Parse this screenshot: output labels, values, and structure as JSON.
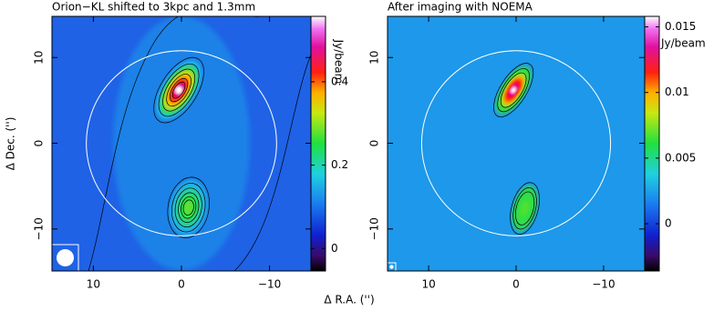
{
  "chart_data": [
    {
      "type": "map",
      "title": "Orion−KL shifted to 3kpc and 1.3mm",
      "x_label": "Δ R.A. ('')",
      "y_label": "Δ Dec. ('')",
      "xlim": [
        14.7,
        -14.7
      ],
      "ylim": [
        -14.9,
        14.8
      ],
      "xticks": [
        10,
        0,
        {
          "value": -10,
          "label": "−10"
        }
      ],
      "yticks": [
        10,
        0,
        {
          "value": -10,
          "label": "−10"
        }
      ],
      "colorbar": {
        "label": "Jy/beam",
        "lim": [
          -0.054,
          0.557
        ],
        "ticks": [
          0.4,
          0.2,
          0
        ]
      }
    },
    {
      "type": "map",
      "title": "After imaging with NOEMA",
      "xlim": [
        14.7,
        -14.7
      ],
      "ylim": [
        -14.9,
        14.8
      ],
      "xticks": [
        10,
        0,
        {
          "value": -10,
          "label": "−10"
        }
      ],
      "yticks": [
        10,
        0,
        {
          "value": -10,
          "label": "−10"
        }
      ],
      "colorbar": {
        "label": "Jy/beam",
        "lim": [
          -0.0036,
          0.0158
        ],
        "ticks": [
          0.015,
          0.01,
          0.005,
          0
        ]
      }
    }
  ]
}
